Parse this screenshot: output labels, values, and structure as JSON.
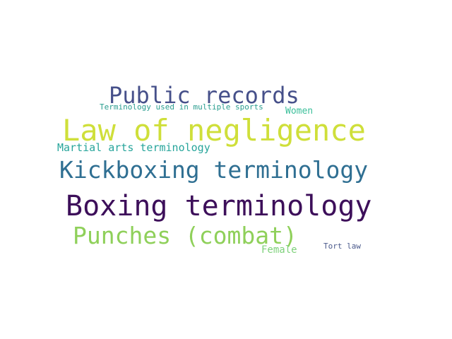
{
  "words": [
    {
      "text": "Public records",
      "color": "#46508a"
    },
    {
      "text": "Terminology used in multiple sports",
      "color": "#2a9d8f"
    },
    {
      "text": "Women",
      "color": "#3bbf9a"
    },
    {
      "text": "Law of negligence",
      "color": "#cfdf3a"
    },
    {
      "text": "Martial arts terminology",
      "color": "#27a59b"
    },
    {
      "text": "Kickboxing terminology",
      "color": "#2f6f92"
    },
    {
      "text": "Boxing terminology",
      "color": "#3d0f5a"
    },
    {
      "text": "Punches (combat)",
      "color": "#8fd05a"
    },
    {
      "text": "Female",
      "color": "#7ed17a"
    },
    {
      "text": "Tort law",
      "color": "#4b5a8c"
    }
  ]
}
